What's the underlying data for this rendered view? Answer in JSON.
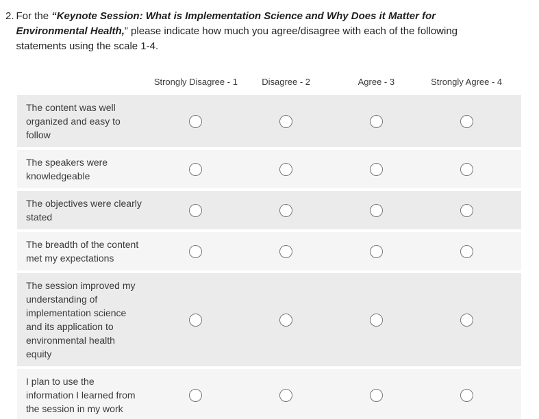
{
  "question": {
    "number": "2.",
    "prefix": "For the ",
    "emphasis": "“Keynote Session: What is Implementation Science and Why Does it Matter for Environmental Health,",
    "suffix": "” please indicate how much you agree/disagree with each of the following statements using the scale 1-4."
  },
  "table": {
    "columns": [
      "Strongly Disagree - 1",
      "Disagree - 2",
      "Agree - 3",
      "Strongly Agree - 4"
    ],
    "rows": [
      {
        "label": "The content was well organized and easy to follow"
      },
      {
        "label": "The speakers were knowledgeable"
      },
      {
        "label": "The objectives were clearly stated"
      },
      {
        "label": "The breadth of the content met my expectations"
      },
      {
        "label": "The session improved my understanding of implementation science and its application to environmental health equity"
      },
      {
        "label": "I plan to use the information I learned from the session in my work"
      }
    ]
  },
  "colors": {
    "row_light": "#f5f5f5",
    "row_dark": "#ebebeb",
    "radio_border": "#767676",
    "question_text": "#252423",
    "label_text": "#3b3a39"
  }
}
